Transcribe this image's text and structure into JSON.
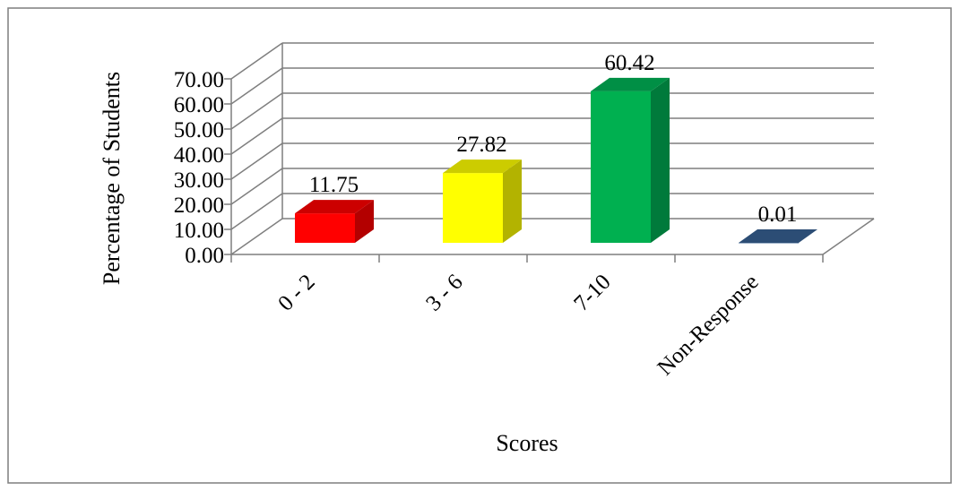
{
  "chart_data": {
    "type": "bar",
    "categories": [
      "0 - 2",
      "3 - 6",
      "7-10",
      "Non-Response"
    ],
    "values": [
      11.75,
      27.82,
      60.42,
      0.01
    ],
    "data_labels": [
      "11.75",
      "27.82",
      "60.42",
      "0.01"
    ],
    "tick_labels": [
      "0.00",
      "10.00",
      "20.00",
      "30.00",
      "40.00",
      "50.00",
      "60.00",
      "70.00"
    ],
    "title": "",
    "xlabel": "Scores",
    "ylabel": "Percentage of Students",
    "ylim": [
      0,
      70
    ],
    "yticks": [
      0,
      10,
      20,
      30,
      40,
      50,
      60,
      70
    ],
    "grid": true,
    "legend": "none",
    "style": "3d-column",
    "colors": [
      "#ff0000",
      "#ffff00",
      "#00b050",
      "#376092"
    ],
    "side_colors": [
      "#b30000",
      "#b3b300",
      "#007a3b",
      "#264364"
    ],
    "top_colors": [
      "#cc0000",
      "#cccc00",
      "#008f45",
      "#2c4d75"
    ],
    "frame_color": "#7f7f7f"
  }
}
